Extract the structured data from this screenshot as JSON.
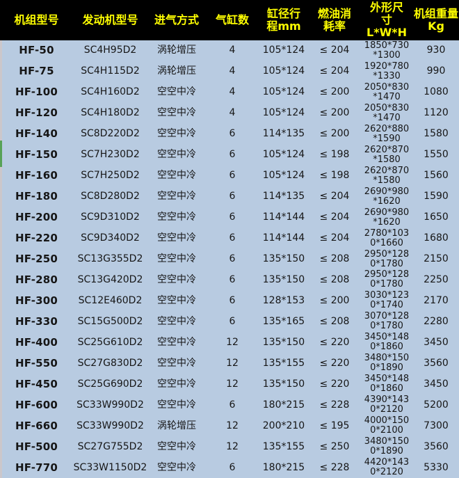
{
  "meta": {
    "colors": {
      "header_bg": "#000000",
      "header_text": "#ffff00",
      "body_bg": "#b8cbe1",
      "text": "#161616",
      "edge_stripe": "#cbc7cb",
      "edge_marker_green": "#57a257"
    }
  },
  "chart_data": {
    "type": "table",
    "grid": false,
    "header_rows": 1,
    "row_count": 21,
    "columns": [
      {
        "key": "model",
        "label": "机组型号"
      },
      {
        "key": "engine",
        "label": "发动机型号"
      },
      {
        "key": "intake",
        "label": "进气方式"
      },
      {
        "key": "cylinders",
        "label": "气缸数"
      },
      {
        "key": "bore_stroke",
        "label": "缸径行程mm"
      },
      {
        "key": "fuel",
        "label": "燃油消耗率"
      },
      {
        "key": "dimensions",
        "label": "外形尺寸\nL*W*H"
      },
      {
        "key": "weight",
        "label": "机组重量\nKg"
      }
    ],
    "rows": [
      {
        "model": "HF-50",
        "engine": "SC4H95D2",
        "intake": "涡轮增压",
        "cylinders": "4",
        "bore_stroke": "105*124",
        "fuel": "≤ 204",
        "dimensions": "1850*730*1300",
        "weight": "930"
      },
      {
        "model": "HF-75",
        "engine": "SC4H115D2",
        "intake": "涡轮增压",
        "cylinders": "4",
        "bore_stroke": "105*124",
        "fuel": "≤ 204",
        "dimensions": "1920*780*1330",
        "weight": "990"
      },
      {
        "model": "HF-100",
        "engine": "SC4H160D2",
        "intake": "空空中冷",
        "cylinders": "4",
        "bore_stroke": "105*124",
        "fuel": "≤ 200",
        "dimensions": "2050*830*1470",
        "weight": "1080"
      },
      {
        "model": "HF-120",
        "engine": "SC4H180D2",
        "intake": "空空中冷",
        "cylinders": "4",
        "bore_stroke": "105*124",
        "fuel": "≤ 200",
        "dimensions": "2050*830*1470",
        "weight": "1120"
      },
      {
        "model": "HF-140",
        "engine": "SC8D220D2",
        "intake": "空空中冷",
        "cylinders": "6",
        "bore_stroke": "114*135",
        "fuel": "≤ 200",
        "dimensions": "2620*880*1590",
        "weight": "1580"
      },
      {
        "model": "HF-150",
        "engine": "SC7H230D2",
        "intake": "空空中冷",
        "cylinders": "6",
        "bore_stroke": "105*124",
        "fuel": "≤ 198",
        "dimensions": "2620*870*1580",
        "weight": "1550"
      },
      {
        "model": "HF-160",
        "engine": "SC7H250D2",
        "intake": "空空中冷",
        "cylinders": "6",
        "bore_stroke": "105*124",
        "fuel": "≤ 198",
        "dimensions": "2620*870*1580",
        "weight": "1560"
      },
      {
        "model": "HF-180",
        "engine": "SC8D280D2",
        "intake": "空空中冷",
        "cylinders": "6",
        "bore_stroke": "114*135",
        "fuel": "≤ 204",
        "dimensions": "2690*980*1620",
        "weight": "1590"
      },
      {
        "model": "HF-200",
        "engine": "SC9D310D2",
        "intake": "空空中冷",
        "cylinders": "6",
        "bore_stroke": "114*144",
        "fuel": "≤ 204",
        "dimensions": "2690*980*1620",
        "weight": "1650"
      },
      {
        "model": "HF-220",
        "engine": "SC9D340D2",
        "intake": "空空中冷",
        "cylinders": "6",
        "bore_stroke": "114*144",
        "fuel": "≤ 204",
        "dimensions": "2780*1030*1660",
        "weight": "1680"
      },
      {
        "model": "HF-250",
        "engine": "SC13G355D2",
        "intake": "空空中冷",
        "cylinders": "6",
        "bore_stroke": "135*150",
        "fuel": "≤ 208",
        "dimensions": "2950*1280*1780",
        "weight": "2150"
      },
      {
        "model": "HF-280",
        "engine": "SC13G420D2",
        "intake": "空空中冷",
        "cylinders": "6",
        "bore_stroke": "135*150",
        "fuel": "≤ 208",
        "dimensions": "2950*1280*1780",
        "weight": "2250"
      },
      {
        "model": "HF-300",
        "engine": "SC12E460D2",
        "intake": "空空中冷",
        "cylinders": "6",
        "bore_stroke": "128*153",
        "fuel": "≤ 200",
        "dimensions": "3030*1230*1740",
        "weight": "2170"
      },
      {
        "model": "HF-330",
        "engine": "SC15G500D2",
        "intake": "空空中冷",
        "cylinders": "6",
        "bore_stroke": "135*165",
        "fuel": "≤ 208",
        "dimensions": "3070*1280*1780",
        "weight": "2280"
      },
      {
        "model": "HF-400",
        "engine": "SC25G610D2",
        "intake": "空空中冷",
        "cylinders": "12",
        "bore_stroke": "135*150",
        "fuel": "≤ 220",
        "dimensions": "3450*1480*1860",
        "weight": "3450"
      },
      {
        "model": "HF-550",
        "engine": "SC27G830D2",
        "intake": "空空中冷",
        "cylinders": "12",
        "bore_stroke": "135*155",
        "fuel": "≤ 220",
        "dimensions": "3480*1500*1890",
        "weight": "3560"
      },
      {
        "model": "HF-450",
        "engine": "SC25G690D2",
        "intake": "空空中冷",
        "cylinders": "12",
        "bore_stroke": "135*150",
        "fuel": "≤ 220",
        "dimensions": "3450*1480*1860",
        "weight": "3450"
      },
      {
        "model": "HF-600",
        "engine": "SC33W990D2",
        "intake": "空空中冷",
        "cylinders": "6",
        "bore_stroke": "180*215",
        "fuel": "≤ 228",
        "dimensions": "4390*1430*2120",
        "weight": "5200"
      },
      {
        "model": "HF-660",
        "engine": "SC33W990D2",
        "intake": "涡轮增压",
        "cylinders": "12",
        "bore_stroke": "200*210",
        "fuel": "≤ 195",
        "dimensions": "4000*1500*2100",
        "weight": "7300"
      },
      {
        "model": "HF-500",
        "engine": "SC27G755D2",
        "intake": "空空中冷",
        "cylinders": "12",
        "bore_stroke": "135*155",
        "fuel": "≤ 250",
        "dimensions": "3480*1500*1890",
        "weight": "3560"
      },
      {
        "model": "HF-770",
        "engine": "SC33W1150D2",
        "intake": "空空中冷",
        "cylinders": "6",
        "bore_stroke": "180*215",
        "fuel": "≤ 228",
        "dimensions": "4420*1430*2120",
        "weight": "5330"
      }
    ]
  }
}
